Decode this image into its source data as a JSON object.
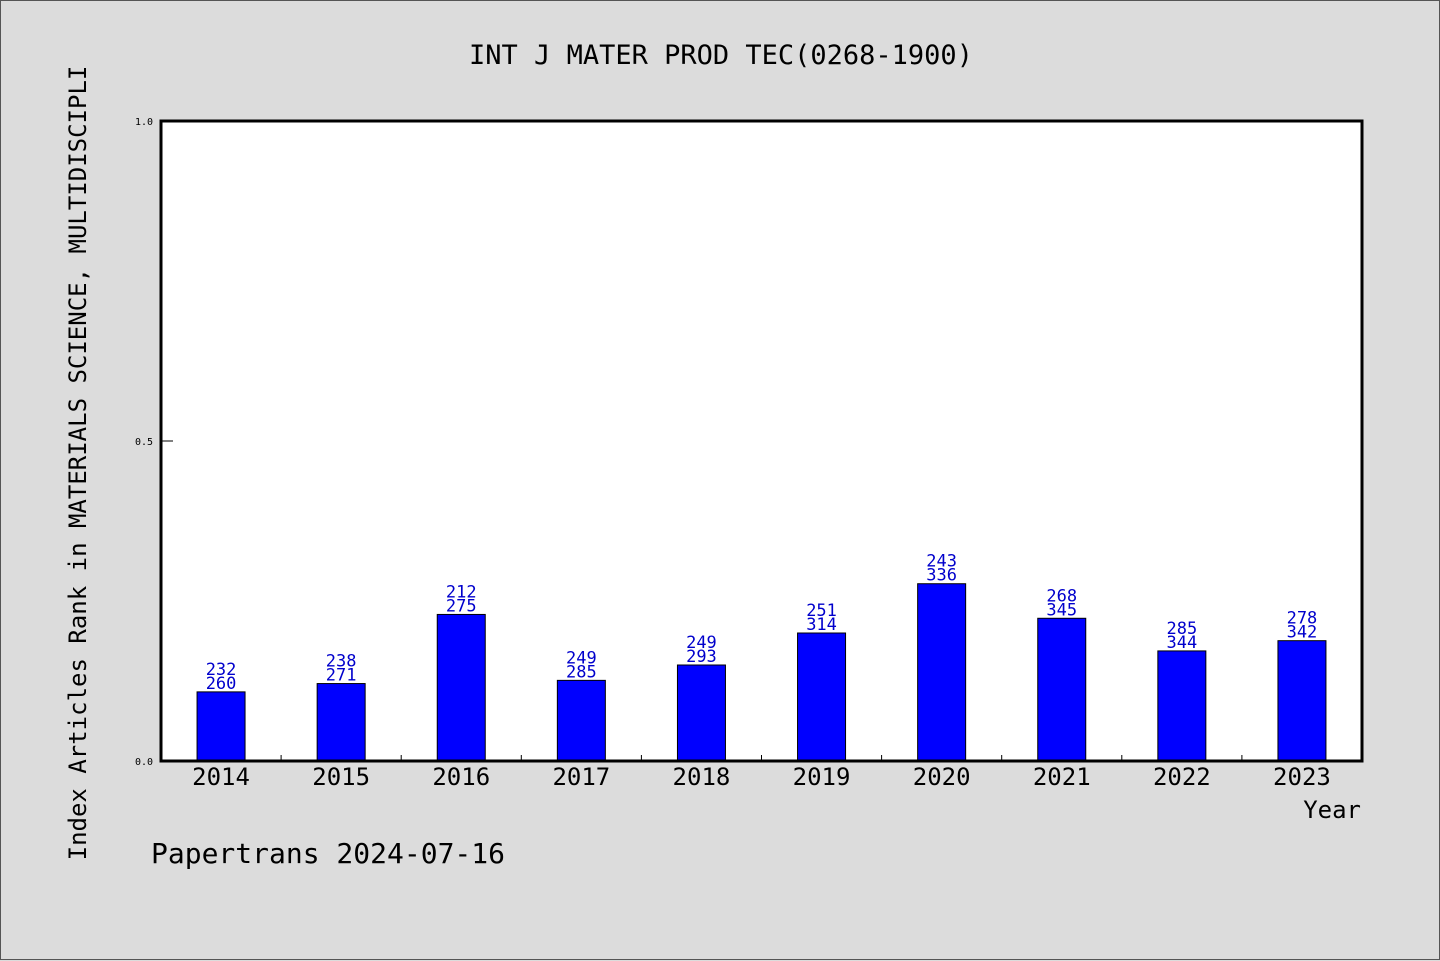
{
  "chart_data": {
    "type": "bar",
    "title": "INT J MATER PROD TEC(0268-1900)",
    "ylabel": "Index Articles Rank in MATERIALS SCIENCE, MULTIDISCIPLI",
    "xlabel": "Year",
    "ylim": [
      0.0,
      1.0
    ],
    "yticks": [
      "0.0",
      "0.5",
      "1.0"
    ],
    "yticks_values": [
      0.0,
      0.5,
      1.0
    ],
    "categories": [
      "2014",
      "2015",
      "2016",
      "2017",
      "2018",
      "2019",
      "2020",
      "2021",
      "2022",
      "2023"
    ],
    "values": [
      0.108,
      0.121,
      0.229,
      0.126,
      0.15,
      0.2,
      0.277,
      0.223,
      0.172,
      0.188
    ],
    "labels_top": [
      "232",
      "238",
      "212",
      "249",
      "249",
      "251",
      "243",
      "268",
      "285",
      "278"
    ],
    "labels_bottom": [
      "260",
      "271",
      "275",
      "285",
      "293",
      "314",
      "336",
      "345",
      "344",
      "342"
    ],
    "bar_color": "#0000ff",
    "label_color": "#0000cc",
    "grid": false
  },
  "footer": {
    "credit": "Papertrans 2024-07-16"
  }
}
